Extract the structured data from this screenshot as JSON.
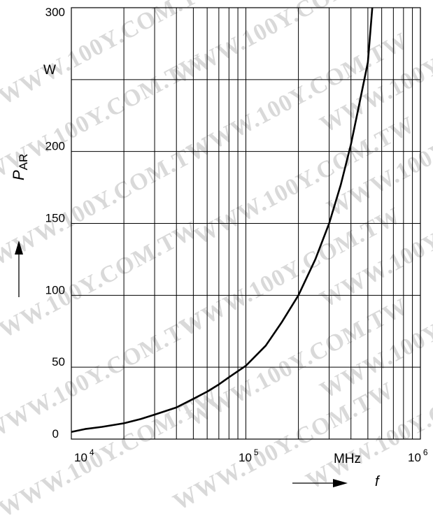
{
  "watermark": "WWW.100Y.COM.TW",
  "chart_data": {
    "type": "line",
    "xscale": "log",
    "xlim": [
      10000,
      1000000
    ],
    "ylim": [
      0,
      300
    ],
    "grid": true,
    "x_tick_labels": [
      {
        "base": "10",
        "exp": "4"
      },
      {
        "base": "10",
        "exp": "5"
      },
      {
        "base": "10",
        "exp": "6"
      }
    ],
    "y_tick_labels": [
      "0",
      "50",
      "100",
      "150",
      "200",
      "300"
    ],
    "y_unit": "W",
    "x_unit": "MHz",
    "ylabel_main": "P",
    "ylabel_sub": "AR",
    "xlabel": "f",
    "series": [
      {
        "x": [
          10000,
          12000,
          15000,
          20000,
          25000,
          30000,
          40000,
          50000,
          60000,
          70000,
          80000,
          100000,
          130000,
          160000,
          200000,
          250000,
          300000,
          350000,
          400000,
          450000,
          500000,
          530000
        ],
        "y": [
          5,
          7,
          8.5,
          11,
          14,
          17,
          22,
          28,
          33,
          38,
          43,
          51,
          65,
          81,
          100,
          125,
          150,
          177,
          205,
          235,
          262,
          300
        ]
      }
    ],
    "colors": {
      "line": "#000000",
      "grid": "#000000",
      "watermark": "#d9d9d9"
    }
  }
}
